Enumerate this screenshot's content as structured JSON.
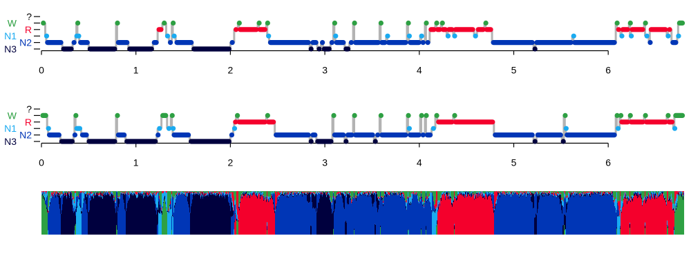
{
  "chart_data": [
    {
      "type": "line",
      "subtype": "hypnogram",
      "xlim": [
        0,
        6.8
      ],
      "x_ticks": [
        "0",
        "1",
        "2",
        "3",
        "4",
        "5",
        "6"
      ],
      "y_levels": [
        "?",
        "W",
        "R",
        "N1",
        "N2",
        "N3"
      ],
      "segments": [
        [
          0,
          0.04,
          "W"
        ],
        [
          0.04,
          0.05,
          "N1"
        ],
        [
          0.05,
          0.22,
          "N2"
        ],
        [
          0.22,
          0.33,
          "N3"
        ],
        [
          0.33,
          0.36,
          "N2"
        ],
        [
          0.36,
          0.37,
          "N1"
        ],
        [
          0.37,
          0.38,
          "W"
        ],
        [
          0.38,
          0.4,
          "N1"
        ],
        [
          0.4,
          0.5,
          "N2"
        ],
        [
          0.5,
          0.79,
          "N3"
        ],
        [
          0.79,
          0.8,
          "W"
        ],
        [
          0.8,
          0.92,
          "N2"
        ],
        [
          0.92,
          1.18,
          "N3"
        ],
        [
          1.18,
          1.23,
          "N2"
        ],
        [
          1.23,
          1.28,
          "R"
        ],
        [
          1.28,
          1.32,
          "W"
        ],
        [
          1.32,
          1.35,
          "N1"
        ],
        [
          1.35,
          1.38,
          "N2"
        ],
        [
          1.38,
          1.39,
          "W"
        ],
        [
          1.39,
          1.42,
          "N1"
        ],
        [
          1.42,
          1.6,
          "N2"
        ],
        [
          1.6,
          2.0,
          "N3"
        ],
        [
          2.0,
          2.04,
          "N2"
        ],
        [
          2.04,
          2.08,
          "R"
        ],
        [
          2.08,
          2.09,
          "W"
        ],
        [
          2.09,
          2.29,
          "R"
        ],
        [
          2.29,
          2.3,
          "W"
        ],
        [
          2.3,
          2.38,
          "R"
        ],
        [
          2.38,
          2.39,
          "W"
        ],
        [
          2.39,
          2.41,
          "N1"
        ],
        [
          2.41,
          2.84,
          "N2"
        ],
        [
          2.84,
          2.86,
          "N3"
        ],
        [
          2.86,
          2.92,
          "N2"
        ],
        [
          2.92,
          2.96,
          "N3"
        ],
        [
          2.96,
          2.98,
          "N2"
        ],
        [
          2.98,
          3.06,
          "N3"
        ],
        [
          3.06,
          3.09,
          "N2"
        ],
        [
          3.09,
          3.1,
          "W"
        ],
        [
          3.1,
          3.11,
          "N1"
        ],
        [
          3.11,
          3.21,
          "N2"
        ],
        [
          3.21,
          3.26,
          "N3"
        ],
        [
          3.26,
          3.3,
          "N2"
        ],
        [
          3.3,
          3.31,
          "W"
        ],
        [
          3.31,
          3.58,
          "N2"
        ],
        [
          3.58,
          3.59,
          "W"
        ],
        [
          3.59,
          3.65,
          "N2"
        ],
        [
          3.65,
          3.66,
          "N1"
        ],
        [
          3.66,
          3.87,
          "N2"
        ],
        [
          3.87,
          3.88,
          "W"
        ],
        [
          3.88,
          3.89,
          "N1"
        ],
        [
          3.89,
          4.01,
          "N2"
        ],
        [
          4.01,
          4.02,
          "N1"
        ],
        [
          4.02,
          4.06,
          "N2"
        ],
        [
          4.06,
          4.07,
          "W"
        ],
        [
          4.07,
          4.11,
          "N2"
        ],
        [
          4.11,
          4.17,
          "R"
        ],
        [
          4.17,
          4.18,
          "W"
        ],
        [
          4.18,
          4.23,
          "R"
        ],
        [
          4.23,
          4.24,
          "W"
        ],
        [
          4.24,
          4.29,
          "R"
        ],
        [
          4.29,
          4.3,
          "N1"
        ],
        [
          4.3,
          4.36,
          "R"
        ],
        [
          4.36,
          4.37,
          "N1"
        ],
        [
          4.37,
          4.58,
          "R"
        ],
        [
          4.58,
          4.61,
          "N1"
        ],
        [
          4.61,
          4.69,
          "R"
        ],
        [
          4.69,
          4.7,
          "W"
        ],
        [
          4.7,
          4.77,
          "R"
        ],
        [
          4.77,
          5.21,
          "N2"
        ],
        [
          5.21,
          5.23,
          "N3"
        ],
        [
          5.23,
          5.62,
          "N2"
        ],
        [
          5.62,
          5.63,
          "N1"
        ],
        [
          5.63,
          6.08,
          "N2"
        ],
        [
          6.08,
          6.09,
          "W"
        ],
        [
          6.09,
          6.13,
          "R"
        ],
        [
          6.13,
          6.14,
          "N1"
        ],
        [
          6.14,
          6.22,
          "R"
        ],
        [
          6.22,
          6.23,
          "W"
        ],
        [
          6.23,
          6.24,
          "N1"
        ],
        [
          6.24,
          6.38,
          "R"
        ],
        [
          6.38,
          6.39,
          "W"
        ],
        [
          6.39,
          6.43,
          "N1"
        ],
        [
          6.43,
          6.44,
          "N2"
        ],
        [
          6.44,
          6.62,
          "R"
        ],
        [
          6.62,
          6.63,
          "N1"
        ],
        [
          6.63,
          6.67,
          "R"
        ],
        [
          6.67,
          6.73,
          "N2"
        ],
        [
          6.73,
          6.74,
          "N1"
        ],
        [
          6.74,
          6.8,
          "W"
        ]
      ]
    },
    {
      "type": "line",
      "subtype": "hypnogram",
      "xlim": [
        0,
        6.8
      ],
      "x_ticks": [
        "0",
        "1",
        "2",
        "3",
        "4",
        "5",
        "6"
      ],
      "y_levels": [
        "?",
        "W",
        "R",
        "N1",
        "N2",
        "N3"
      ],
      "segments": [
        [
          0,
          0.06,
          "W"
        ],
        [
          0.06,
          0.07,
          "N1"
        ],
        [
          0.07,
          0.2,
          "N2"
        ],
        [
          0.2,
          0.34,
          "N3"
        ],
        [
          0.34,
          0.35,
          "N2"
        ],
        [
          0.35,
          0.36,
          "W"
        ],
        [
          0.36,
          0.42,
          "N1"
        ],
        [
          0.42,
          0.49,
          "N2"
        ],
        [
          0.49,
          0.79,
          "N3"
        ],
        [
          0.79,
          0.8,
          "W"
        ],
        [
          0.8,
          0.89,
          "N2"
        ],
        [
          0.89,
          1.22,
          "N3"
        ],
        [
          1.22,
          1.23,
          "N2"
        ],
        [
          1.23,
          1.27,
          "N1"
        ],
        [
          1.27,
          1.33,
          "W"
        ],
        [
          1.33,
          1.37,
          "N1"
        ],
        [
          1.37,
          1.38,
          "W"
        ],
        [
          1.38,
          1.39,
          "N1"
        ],
        [
          1.39,
          1.57,
          "N2"
        ],
        [
          1.57,
          2.0,
          "N3"
        ],
        [
          2.0,
          2.03,
          "N2"
        ],
        [
          2.03,
          2.04,
          "N1"
        ],
        [
          2.04,
          2.06,
          "R"
        ],
        [
          2.06,
          2.08,
          "W"
        ],
        [
          2.08,
          2.38,
          "R"
        ],
        [
          2.38,
          2.39,
          "W"
        ],
        [
          2.39,
          2.47,
          "R"
        ],
        [
          2.47,
          2.84,
          "N2"
        ],
        [
          2.84,
          2.86,
          "N3"
        ],
        [
          2.86,
          2.91,
          "N2"
        ],
        [
          2.91,
          3.08,
          "N3"
        ],
        [
          3.08,
          3.09,
          "W"
        ],
        [
          3.09,
          3.21,
          "N2"
        ],
        [
          3.21,
          3.23,
          "N3"
        ],
        [
          3.23,
          3.3,
          "N2"
        ],
        [
          3.3,
          3.31,
          "W"
        ],
        [
          3.31,
          3.52,
          "N2"
        ],
        [
          3.52,
          3.54,
          "N3"
        ],
        [
          3.54,
          3.58,
          "N2"
        ],
        [
          3.58,
          3.59,
          "W"
        ],
        [
          3.59,
          3.87,
          "N2"
        ],
        [
          3.87,
          3.88,
          "W"
        ],
        [
          3.88,
          3.89,
          "N1"
        ],
        [
          3.89,
          4.01,
          "N2"
        ],
        [
          4.01,
          4.02,
          "W"
        ],
        [
          4.02,
          4.06,
          "N2"
        ],
        [
          4.06,
          4.07,
          "W"
        ],
        [
          4.07,
          4.13,
          "N2"
        ],
        [
          4.13,
          4.17,
          "N1"
        ],
        [
          4.17,
          4.19,
          "W"
        ],
        [
          4.19,
          4.36,
          "R"
        ],
        [
          4.36,
          4.37,
          "W"
        ],
        [
          4.37,
          4.79,
          "R"
        ],
        [
          4.79,
          5.21,
          "N2"
        ],
        [
          5.21,
          5.24,
          "N3"
        ],
        [
          5.24,
          5.51,
          "N2"
        ],
        [
          5.51,
          5.53,
          "N3"
        ],
        [
          5.53,
          5.54,
          "W"
        ],
        [
          5.54,
          5.55,
          "N1"
        ],
        [
          5.55,
          6.08,
          "N2"
        ],
        [
          6.08,
          6.09,
          "W"
        ],
        [
          6.09,
          6.12,
          "N1"
        ],
        [
          6.12,
          6.13,
          "W"
        ],
        [
          6.13,
          6.22,
          "R"
        ],
        [
          6.22,
          6.23,
          "W"
        ],
        [
          6.23,
          6.38,
          "R"
        ],
        [
          6.38,
          6.39,
          "W"
        ],
        [
          6.39,
          6.62,
          "R"
        ],
        [
          6.62,
          6.63,
          "W"
        ],
        [
          6.63,
          6.69,
          "R"
        ],
        [
          6.69,
          6.7,
          "N1"
        ],
        [
          6.7,
          6.8,
          "W"
        ]
      ]
    },
    {
      "type": "area",
      "subtype": "hypnodensity",
      "stacked": true,
      "xlim": [
        0,
        6.8
      ],
      "ylim": [
        0,
        1
      ],
      "stages": [
        "W",
        "R",
        "N1",
        "N2",
        "N3"
      ]
    }
  ],
  "colors": {
    "W": "#2ea043",
    "R": "#f4002c",
    "N1": "#1aaaf0",
    "N2": "#0036b6",
    "N3": "#00003e",
    "unknown": "#000000",
    "transition": "#b3b3b3",
    "axis": "#000000"
  }
}
